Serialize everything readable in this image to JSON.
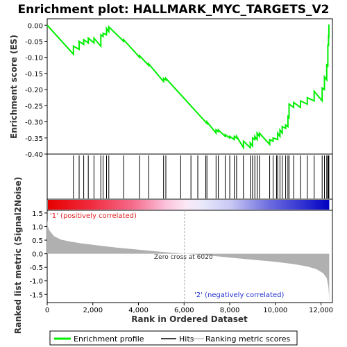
{
  "title": "Enrichment plot: HALLMARK_MYC_TARGETS_V2",
  "colors": {
    "enrichment_line": "#00ee00",
    "hits": "#000000",
    "metric_fill": "#b0b0b0",
    "positive_label": "#e02020",
    "negative_label": "#2030d0",
    "zero_line": "#aaaaaa"
  },
  "chart_data": [
    {
      "type": "line",
      "name": "enrichment-profile",
      "ylabel": "Enrichment score (ES)",
      "xlim": [
        0,
        12500
      ],
      "ylim": [
        -0.4,
        0.02
      ],
      "y_ticks": [
        "0.00",
        "-0.05",
        "-0.10",
        "-0.15",
        "-0.20",
        "-0.25",
        "-0.30",
        "-0.35",
        "-0.40"
      ],
      "grid": false,
      "x": [
        0,
        1150,
        1150,
        1400,
        1400,
        1600,
        1600,
        1800,
        1800,
        2050,
        2050,
        2350,
        2350,
        2450,
        2450,
        2600,
        2600,
        2700,
        2700,
        3350,
        3350,
        4050,
        4050,
        4450,
        4450,
        5100,
        5100,
        5200,
        5200,
        7000,
        7000,
        7400,
        7400,
        7500,
        7500,
        7800,
        7800,
        8000,
        8000,
        8200,
        8200,
        8300,
        8300,
        8600,
        8600,
        8900,
        8900,
        9000,
        9000,
        9100,
        9100,
        9200,
        9200,
        9300,
        9300,
        9750,
        9750,
        9900,
        9900,
        10100,
        10100,
        10200,
        10200,
        10300,
        10300,
        10450,
        10450,
        10550,
        10550,
        10600,
        10600,
        10800,
        10800,
        11100,
        11100,
        11400,
        11400,
        11700,
        11700,
        12050,
        12050,
        12150,
        12150,
        12250,
        12250,
        12300,
        12300,
        12330,
        12330,
        12345,
        12345,
        12360
      ],
      "y": [
        0.0,
        -0.09,
        -0.065,
        -0.075,
        -0.05,
        -0.06,
        -0.045,
        -0.055,
        -0.04,
        -0.055,
        -0.04,
        -0.065,
        -0.03,
        -0.035,
        -0.025,
        -0.03,
        -0.01,
        -0.02,
        -0.005,
        -0.05,
        -0.045,
        -0.1,
        -0.095,
        -0.125,
        -0.12,
        -0.175,
        -0.165,
        -0.17,
        -0.165,
        -0.305,
        -0.3,
        -0.335,
        -0.325,
        -0.33,
        -0.325,
        -0.345,
        -0.34,
        -0.35,
        -0.345,
        -0.355,
        -0.345,
        -0.35,
        -0.345,
        -0.38,
        -0.36,
        -0.38,
        -0.365,
        -0.375,
        -0.35,
        -0.355,
        -0.345,
        -0.355,
        -0.335,
        -0.345,
        -0.335,
        -0.37,
        -0.355,
        -0.36,
        -0.35,
        -0.355,
        -0.335,
        -0.345,
        -0.325,
        -0.335,
        -0.315,
        -0.32,
        -0.31,
        -0.315,
        -0.28,
        -0.29,
        -0.245,
        -0.255,
        -0.24,
        -0.255,
        -0.235,
        -0.245,
        -0.225,
        -0.235,
        -0.205,
        -0.235,
        -0.195,
        -0.2,
        -0.16,
        -0.17,
        -0.12,
        -0.13,
        -0.06,
        -0.065,
        -0.03,
        -0.04,
        0.0,
        0.0
      ]
    },
    {
      "type": "scatter",
      "name": "hits",
      "x": [
        1150,
        1400,
        1600,
        1800,
        2050,
        2350,
        2450,
        2600,
        2700,
        3350,
        4050,
        4450,
        5100,
        5200,
        5850,
        6300,
        6600,
        6950,
        7000,
        7400,
        7500,
        7800,
        8000,
        8200,
        8300,
        8600,
        8900,
        9000,
        9100,
        9200,
        9300,
        9750,
        9900,
        10050,
        10100,
        10200,
        10300,
        10450,
        10550,
        10600,
        10800,
        11100,
        11400,
        11700,
        12050,
        12150,
        12250,
        12300,
        12330,
        12345
      ]
    },
    {
      "type": "area",
      "name": "ranking-metric-scores",
      "xlabel": "Rank in Ordered Dataset",
      "ylabel": "Ranked list metric (Signal2Noise)",
      "xlim": [
        0,
        12500
      ],
      "ylim": [
        -1.8,
        1.6
      ],
      "y_ticks": [
        "1.5",
        "1.0",
        "0.5",
        "0.0",
        "-0.5",
        "-1.0",
        "-1.5"
      ],
      "x_ticks": [
        "0",
        "2,000",
        "4,000",
        "6,000",
        "8,000",
        "10,000",
        "12,000"
      ],
      "x": [
        0,
        30,
        100,
        300,
        600,
        1000,
        1500,
        2000,
        3000,
        4000,
        5000,
        6020,
        7000,
        8000,
        9000,
        10000,
        10800,
        11400,
        11800,
        12100,
        12250,
        12320,
        12350,
        12360
      ],
      "y": [
        1.25,
        1.0,
        0.85,
        0.65,
        0.52,
        0.45,
        0.38,
        0.33,
        0.23,
        0.15,
        0.07,
        0.0,
        -0.06,
        -0.14,
        -0.22,
        -0.3,
        -0.38,
        -0.47,
        -0.57,
        -0.72,
        -0.9,
        -1.2,
        -1.55,
        -1.75
      ]
    }
  ],
  "annotations": {
    "positive": "'1' (positively correlated)",
    "negative": "'2' (negatively correlated)",
    "zero_cross": "Zero cross at 6020"
  },
  "legend": {
    "items": [
      "Enrichment profile",
      "Hits",
      "Ranking metric scores"
    ]
  }
}
